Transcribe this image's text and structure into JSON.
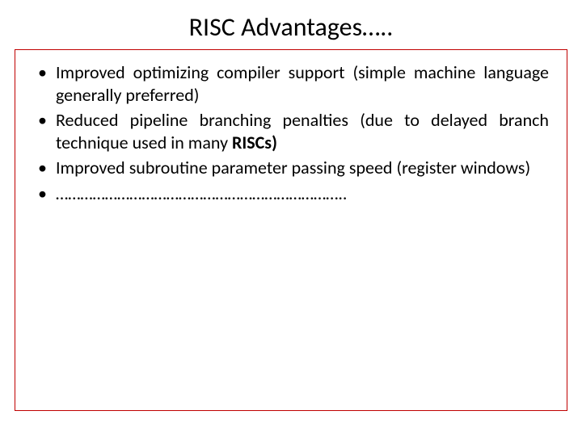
{
  "slide": {
    "title": "RISC Advantages…..",
    "title_fontsize": 32,
    "title_color": "#000000",
    "background_color": "#ffffff",
    "border_color": "#c00000",
    "text_color": "#000000",
    "body_fontsize": 22,
    "bullets": [
      {
        "text_parts": [
          {
            "t": "Improved optimizing compiler support (simple machine language generally preferred)",
            "bold": false
          }
        ]
      },
      {
        "text_parts": [
          {
            "t": "Reduced pipeline branching penalties (due to delayed branch technique used in many ",
            "bold": false
          },
          {
            "t": "RISCs)",
            "bold": true
          }
        ]
      },
      {
        "text_parts": [
          {
            "t": "Improved subroutine parameter passing speed (register windows)",
            "bold": false
          }
        ]
      },
      {
        "text_parts": [
          {
            "t": "……………………………………………………………..",
            "bold": false
          }
        ]
      }
    ]
  }
}
